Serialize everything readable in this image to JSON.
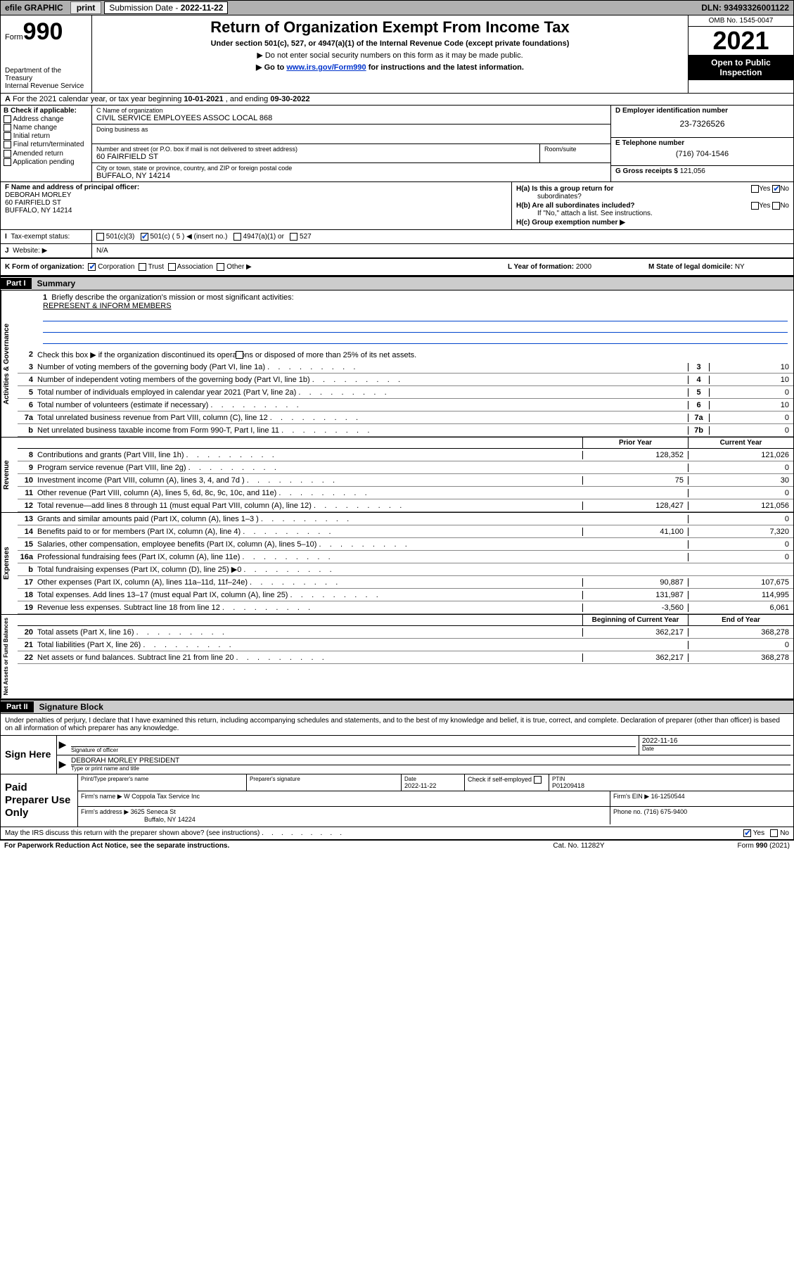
{
  "topbar": {
    "efile": "efile GRAPHIC",
    "print": "print",
    "subdate_label": "Submission Date - ",
    "subdate": "2022-11-22",
    "dln_label": "DLN: ",
    "dln": "93493326001122"
  },
  "header": {
    "form_prefix": "Form",
    "form_number": "990",
    "dept": "Department of the Treasury",
    "irs": "Internal Revenue Service",
    "title": "Return of Organization Exempt From Income Tax",
    "subtitle": "Under section 501(c), 527, or 4947(a)(1) of the Internal Revenue Code (except private foundations)",
    "note1": "▶ Do not enter social security numbers on this form as it may be made public.",
    "note2_pre": "▶ Go to ",
    "note2_link": "www.irs.gov/Form990",
    "note2_post": " for instructions and the latest information.",
    "omb": "OMB No. 1545-0047",
    "year": "2021",
    "open": "Open to Public Inspection"
  },
  "rowA": {
    "label": "A",
    "text": "For the 2021 calendar year, or tax year beginning ",
    "begin": "10-01-2021",
    "mid": " , and ending ",
    "end": "09-30-2022"
  },
  "B": {
    "label": "B Check if applicable:",
    "addr": "Address change",
    "name": "Name change",
    "init": "Initial return",
    "final": "Final return/terminated",
    "amend": "Amended return",
    "app": "Application pending"
  },
  "C": {
    "name_lbl": "C Name of organization",
    "name": "CIVIL SERVICE EMPLOYEES ASSOC LOCAL 868",
    "dba_lbl": "Doing business as",
    "dba": "",
    "street_lbl": "Number and street (or P.O. box if mail is not delivered to street address)",
    "room_lbl": "Room/suite",
    "street": "60 FAIRFIELD ST",
    "city_lbl": "City or town, state or province, country, and ZIP or foreign postal code",
    "city": "BUFFALO, NY  14214"
  },
  "D": {
    "ein_lbl": "D Employer identification number",
    "ein": "23-7326526",
    "tel_lbl": "E Telephone number",
    "tel": "(716) 704-1546",
    "gross_lbl": "G Gross receipts $ ",
    "gross": "121,056"
  },
  "F": {
    "lbl": "F Name and address of principal officer:",
    "name": "DEBORAH MORLEY",
    "street": "60 FAIRFIELD ST",
    "city": "BUFFALO, NY  14214"
  },
  "H": {
    "a": "H(a)  Is this a group return for",
    "a2": "subordinates?",
    "b": "H(b)  Are all subordinates included?",
    "bnote": "If \"No,\" attach a list. See instructions.",
    "c": "H(c)  Group exemption number ▶",
    "yes": "Yes",
    "no": "No"
  },
  "I": {
    "lbl": "Tax-exempt status:",
    "c3": "501(c)(3)",
    "c5": "501(c) ( 5 ) ◀ (insert no.)",
    "a1": "4947(a)(1) or",
    "s527": "527"
  },
  "J": {
    "lbl": "Website: ▶",
    "val": "N/A"
  },
  "K": {
    "lbl": "K Form of organization:",
    "corp": "Corporation",
    "trust": "Trust",
    "assoc": "Association",
    "other": "Other ▶",
    "L_lbl": "L Year of formation: ",
    "L_val": "2000",
    "M_lbl": "M State of legal domicile: ",
    "M_val": "NY"
  },
  "part1": {
    "hdr": "Part I",
    "title": "Summary",
    "q1": "Briefly describe the organization's mission or most significant activities:",
    "mission": "REPRESENT & INFORM MEMBERS",
    "q2": "Check this box ▶        if the organization discontinued its operations or disposed of more than 25% of its net assets.",
    "side_ag": "Activities & Governance",
    "side_rev": "Revenue",
    "side_exp": "Expenses",
    "side_na": "Net Assets or Fund Balances",
    "col_py": "Prior Year",
    "col_cy": "Current Year",
    "col_bcy": "Beginning of Current Year",
    "col_eoy": "End of Year",
    "lines_gov": [
      {
        "n": "3",
        "t": "Number of voting members of the governing body (Part VI, line 1a)",
        "box": "3",
        "v": "10"
      },
      {
        "n": "4",
        "t": "Number of independent voting members of the governing body (Part VI, line 1b)",
        "box": "4",
        "v": "10"
      },
      {
        "n": "5",
        "t": "Total number of individuals employed in calendar year 2021 (Part V, line 2a)",
        "box": "5",
        "v": "0"
      },
      {
        "n": "6",
        "t": "Total number of volunteers (estimate if necessary)",
        "box": "6",
        "v": "10"
      },
      {
        "n": "7a",
        "t": "Total unrelated business revenue from Part VIII, column (C), line 12",
        "box": "7a",
        "v": "0"
      },
      {
        "n": "b",
        "t": "Net unrelated business taxable income from Form 990-T, Part I, line 11",
        "box": "7b",
        "v": "0"
      }
    ],
    "lines_rev": [
      {
        "n": "8",
        "t": "Contributions and grants (Part VIII, line 1h)",
        "py": "128,352",
        "cy": "121,026"
      },
      {
        "n": "9",
        "t": "Program service revenue (Part VIII, line 2g)",
        "py": "",
        "cy": "0"
      },
      {
        "n": "10",
        "t": "Investment income (Part VIII, column (A), lines 3, 4, and 7d )",
        "py": "75",
        "cy": "30"
      },
      {
        "n": "11",
        "t": "Other revenue (Part VIII, column (A), lines 5, 6d, 8c, 9c, 10c, and 11e)",
        "py": "",
        "cy": "0"
      },
      {
        "n": "12",
        "t": "Total revenue—add lines 8 through 11 (must equal Part VIII, column (A), line 12)",
        "py": "128,427",
        "cy": "121,056"
      }
    ],
    "lines_exp": [
      {
        "n": "13",
        "t": "Grants and similar amounts paid (Part IX, column (A), lines 1–3 )",
        "py": "",
        "cy": "0"
      },
      {
        "n": "14",
        "t": "Benefits paid to or for members (Part IX, column (A), line 4)",
        "py": "41,100",
        "cy": "7,320"
      },
      {
        "n": "15",
        "t": "Salaries, other compensation, employee benefits (Part IX, column (A), lines 5–10)",
        "py": "",
        "cy": "0"
      },
      {
        "n": "16a",
        "t": "Professional fundraising fees (Part IX, column (A), line 11e)",
        "py": "",
        "cy": "0"
      },
      {
        "n": "b",
        "t": "Total fundraising expenses (Part IX, column (D), line 25) ▶0",
        "py": "SHADE",
        "cy": "SHADE"
      },
      {
        "n": "17",
        "t": "Other expenses (Part IX, column (A), lines 11a–11d, 11f–24e)",
        "py": "90,887",
        "cy": "107,675"
      },
      {
        "n": "18",
        "t": "Total expenses. Add lines 13–17 (must equal Part IX, column (A), line 25)",
        "py": "131,987",
        "cy": "114,995"
      },
      {
        "n": "19",
        "t": "Revenue less expenses. Subtract line 18 from line 12",
        "py": "-3,560",
        "cy": "6,061"
      }
    ],
    "lines_na": [
      {
        "n": "20",
        "t": "Total assets (Part X, line 16)",
        "py": "362,217",
        "cy": "368,278"
      },
      {
        "n": "21",
        "t": "Total liabilities (Part X, line 26)",
        "py": "",
        "cy": "0"
      },
      {
        "n": "22",
        "t": "Net assets or fund balances. Subtract line 21 from line 20",
        "py": "362,217",
        "cy": "368,278"
      }
    ]
  },
  "part2": {
    "hdr": "Part II",
    "title": "Signature Block",
    "intro": "Under penalties of perjury, I declare that I have examined this return, including accompanying schedules and statements, and to the best of my knowledge and belief, it is true, correct, and complete. Declaration of preparer (other than officer) is based on all information of which preparer has any knowledge.",
    "sign_here": "Sign Here",
    "sig_lbl": "Signature of officer",
    "date_lbl": "Date",
    "sig_date": "2022-11-16",
    "officer": "DEBORAH MORLEY PRESIDENT",
    "type_lbl": "Type or print name and title",
    "paid": "Paid Preparer Use Only",
    "prep_name_lbl": "Print/Type preparer's name",
    "prep_sig_lbl": "Preparer's signature",
    "prep_date_lbl": "Date",
    "prep_date": "2022-11-22",
    "check_lbl": "Check         if self-employed",
    "ptin_lbl": "PTIN",
    "ptin": "P01209418",
    "firm_name_lbl": "Firm's name      ▶ ",
    "firm_name": "W Coppola Tax Service Inc",
    "firm_ein_lbl": "Firm's EIN ▶ ",
    "firm_ein": "16-1250544",
    "firm_addr_lbl": "Firm's address ▶ ",
    "firm_addr1": "3625 Seneca St",
    "firm_addr2": "Buffalo, NY  14224",
    "phone_lbl": "Phone no. ",
    "phone": "(716) 675-9400",
    "discuss": "May the IRS discuss this return with the preparer shown above? (see instructions)",
    "yes": "Yes",
    "no": "No"
  },
  "footer": {
    "l": "For Paperwork Reduction Act Notice, see the separate instructions.",
    "m": "Cat. No. 11282Y",
    "r": "Form 990 (2021)"
  }
}
